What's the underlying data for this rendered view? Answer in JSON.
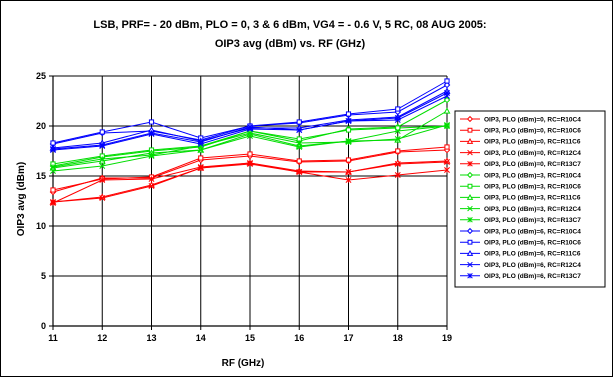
{
  "chart_data": {
    "type": "line",
    "title": "LSB, PRF= - 20 dBm, PLO = 0, 3 & 6 dBm, VG4 = - 0.6 V, 5 RC, 08 AUG 2005:",
    "subtitle": "OIP3 avg (dBm) vs. RF (GHz)",
    "xlabel": "RF (GHz)",
    "ylabel": "OIP3 avg (dBm)",
    "x": [
      11,
      12,
      13,
      14,
      15,
      16,
      17,
      18,
      19
    ],
    "x_ticks": [
      "11",
      "12",
      "13",
      "14",
      "15",
      "16",
      "17",
      "18",
      "19"
    ],
    "y_ticks": [
      "0",
      "5",
      "10",
      "15",
      "20",
      "25"
    ],
    "xlim": [
      11,
      19
    ],
    "ylim": [
      0,
      25
    ],
    "grid": true,
    "legend_position": "right",
    "series": [
      {
        "name": "OIP3, PLO (dBm)=0, RC=R10C4",
        "color": "#ff0000",
        "marker": "diamond",
        "values": [
          13.4,
          14.8,
          14.8,
          16.6,
          17.0,
          16.4,
          16.5,
          17.4,
          17.6
        ]
      },
      {
        "name": "OIP3, PLO (dBm)=0, RC=R10C6",
        "color": "#ff0000",
        "marker": "square",
        "values": [
          13.6,
          14.7,
          14.9,
          16.8,
          17.2,
          16.5,
          16.6,
          17.5,
          17.9
        ]
      },
      {
        "name": "OIP3, PLO (dBm)=0, RC=R11C6",
        "color": "#ff0000",
        "marker": "triangle",
        "values": [
          12.4,
          12.9,
          14.1,
          15.8,
          16.3,
          15.5,
          15.4,
          16.3,
          16.5
        ]
      },
      {
        "name": "OIP3, PLO (dBm)=0, RC=R12C4",
        "color": "#ff0000",
        "marker": "x",
        "values": [
          12.4,
          12.8,
          14.0,
          15.8,
          16.2,
          15.4,
          15.4,
          16.2,
          16.4
        ]
      },
      {
        "name": "OIP3, PLO (dBm)=0, RC=R13C7",
        "color": "#ff0000",
        "marker": "asterisk",
        "values": [
          12.3,
          14.6,
          14.7,
          15.9,
          16.3,
          15.4,
          14.6,
          15.1,
          15.6
        ]
      },
      {
        "name": "OIP3, PLO (dBm)=3, RC=R10C4",
        "color": "#00dd00",
        "marker": "diamond",
        "values": [
          16.0,
          16.9,
          17.5,
          17.9,
          19.5,
          18.5,
          19.7,
          19.9,
          22.6
        ]
      },
      {
        "name": "OIP3, PLO (dBm)=3, RC=R10C6",
        "color": "#00dd00",
        "marker": "square",
        "values": [
          16.2,
          17.0,
          17.6,
          18.0,
          19.5,
          18.7,
          19.6,
          19.8,
          20.0
        ]
      },
      {
        "name": "OIP3, PLO (dBm)=3, RC=R11C6",
        "color": "#00dd00",
        "marker": "triangle",
        "values": [
          15.8,
          16.5,
          17.3,
          17.6,
          19.2,
          18.0,
          18.5,
          18.6,
          21.5
        ]
      },
      {
        "name": "OIP3, PLO (dBm)=3, RC=R12C4",
        "color": "#00dd00",
        "marker": "x",
        "values": [
          15.5,
          16.0,
          17.0,
          17.6,
          19.0,
          17.9,
          18.5,
          19.5,
          20.0
        ]
      },
      {
        "name": "OIP3, PLO (dBm)=3, RC=R13C7",
        "color": "#00dd00",
        "marker": "asterisk",
        "values": [
          15.9,
          16.7,
          17.1,
          18.0,
          19.3,
          18.3,
          18.4,
          18.7,
          20.1
        ]
      },
      {
        "name": "OIP3, PLO (dBm)=6, RC=R10C4",
        "color": "#0000ff",
        "marker": "diamond",
        "values": [
          18.2,
          19.3,
          19.5,
          18.6,
          20.0,
          20.3,
          21.1,
          21.4,
          24.1
        ]
      },
      {
        "name": "OIP3, PLO (dBm)=6, RC=R10C6",
        "color": "#0000ff",
        "marker": "square",
        "values": [
          18.3,
          19.4,
          20.4,
          18.8,
          20.0,
          20.4,
          21.2,
          21.7,
          24.5
        ]
      },
      {
        "name": "OIP3, PLO (dBm)=6, RC=R11C6",
        "color": "#0000ff",
        "marker": "triangle",
        "values": [
          17.8,
          18.3,
          19.6,
          18.5,
          19.8,
          19.8,
          20.6,
          20.9,
          23.5
        ]
      },
      {
        "name": "OIP3, PLO (dBm)=6, RC=R12C4",
        "color": "#0000ff",
        "marker": "x",
        "values": [
          17.6,
          18.0,
          19.2,
          18.2,
          19.7,
          19.6,
          20.5,
          20.6,
          23.0
        ]
      },
      {
        "name": "OIP3, PLO (dBm)=6, RC=R13C7",
        "color": "#0000ff",
        "marker": "asterisk",
        "values": [
          17.7,
          18.1,
          19.3,
          18.4,
          19.9,
          19.6,
          20.5,
          20.8,
          23.3
        ]
      }
    ]
  }
}
